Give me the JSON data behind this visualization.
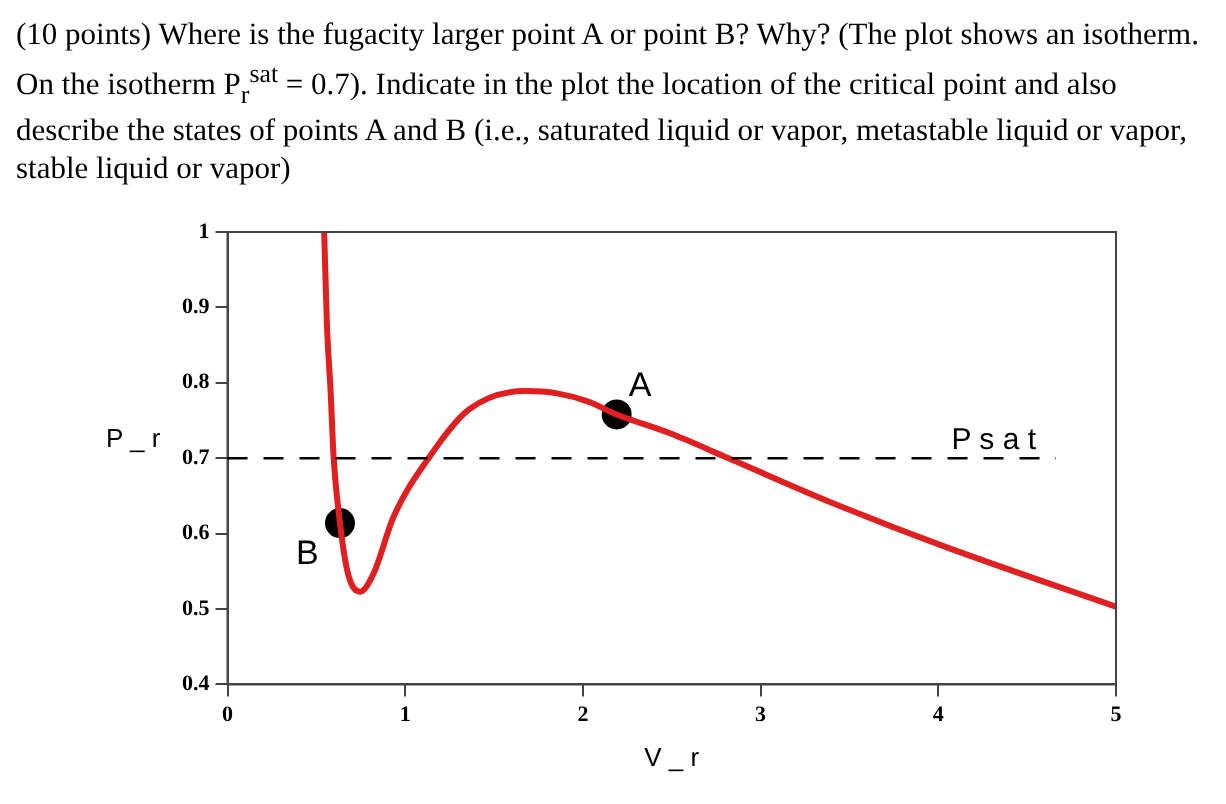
{
  "chart_data": {
    "type": "line",
    "title": "(10 points)    Where is the fugacity larger point A or point B? Why? (The plot shows an isotherm. On the isotherm P$_{r}$$^{sat}$ = 0.7). Indicate in the plot the location of the critical point and also describe the states of points A and B (i.e., saturated liquid or vapor, metastable liquid or vapor, stable liquid or vapor)",
    "xlabel": "V _ r",
    "ylabel": "P _ r",
    "series": [
      {
        "color": "#e02020",
        "marker": "none",
        "x": [
          0.544,
          0.56,
          0.58,
          0.597,
          0.633,
          0.678,
          0.746,
          0.822,
          0.934,
          1.137,
          1.361,
          1.676,
          1.855,
          2.03,
          2.19,
          2.49,
          2.8,
          3.38,
          4.01,
          5.0
        ],
        "values": [
          1.0,
          0.874,
          0.79,
          0.702,
          0.614,
          0.547,
          0.523,
          0.547,
          0.622,
          0.702,
          0.765,
          0.789,
          0.786,
          0.775,
          0.758,
          0.733,
          0.702,
          0.643,
          0.585,
          0.503
        ]
      },
      {
        "type": "scatter",
        "color": "#000000",
        "marker": "circle",
        "x": [
          2.19,
          0.633
        ],
        "values": [
          0.758,
          0.614
        ]
      }
    ],
    "ref_lines": [
      {
        "axis": "y",
        "value": 0.7,
        "label": "P s a t",
        "color": "#000000",
        "line_style": "dashed"
      }
    ],
    "annotations": [
      {
        "text": "A",
        "x": 2.19,
        "y": 0.758
      },
      {
        "text": "B",
        "x": 0.633,
        "y": 0.614
      }
    ],
    "xlim": [
      0,
      5
    ],
    "xticks": [
      0,
      1,
      2,
      3,
      4,
      5
    ],
    "ylim": [
      0.4,
      1
    ],
    "yticks": [
      0.4,
      0.5,
      0.6,
      0.7,
      0.8,
      0.9,
      1
    ],
    "grid": false,
    "legend": false
  }
}
